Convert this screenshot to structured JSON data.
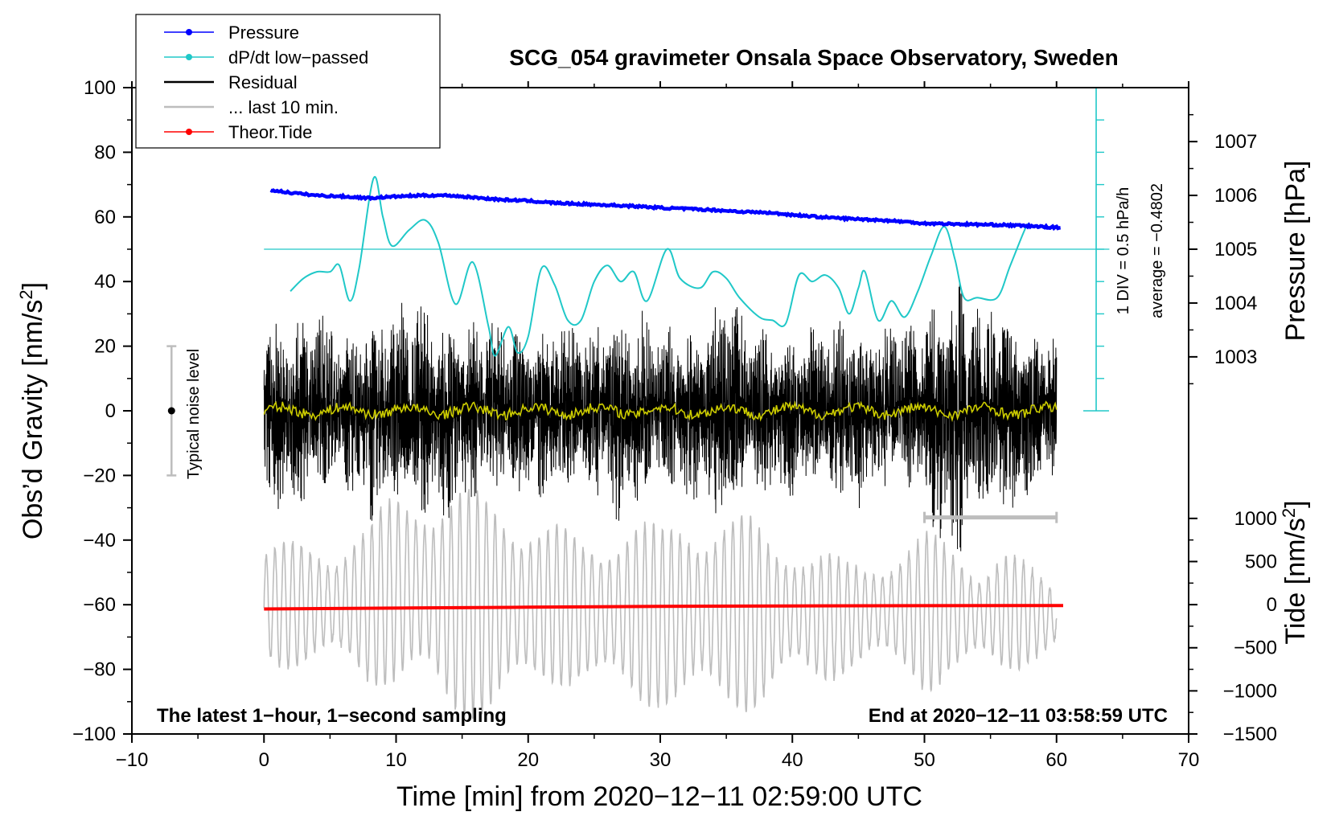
{
  "chart_data": {
    "type": "line",
    "title": "SCG_054 gravimeter Onsala Space Observatory, Sweden",
    "xlabel": "Time [min] from 2020−12−11 02:59:00 UTC",
    "ylabel_left": "Obs’d Gravity [nm/s",
    "ylabel_left_sup": "2",
    "ylabel_left_end": "]",
    "ylabel_right_pressure": "Pressure [hPa]",
    "ylabel_right_tide": "Tide [nm/s",
    "ylabel_right_tide_sup": "2",
    "ylabel_right_tide_end": "]",
    "xlim": [
      -10,
      70
    ],
    "ylim_left": [
      -100,
      100
    ],
    "x_ticks": [
      -10,
      0,
      10,
      20,
      30,
      40,
      50,
      60,
      70
    ],
    "x_tick_labels": [
      "−10",
      "0",
      "10",
      "20",
      "30",
      "40",
      "50",
      "60",
      "70"
    ],
    "y_ticks": [
      100,
      80,
      60,
      40,
      20,
      0,
      -20,
      -40,
      -60,
      -80,
      -100
    ],
    "y_tick_labels": [
      "100",
      "80",
      "60",
      "40",
      "20",
      "0",
      "−20",
      "−40",
      "−60",
      "−80",
      "−100"
    ],
    "pressure_ticks": [
      1007,
      1006,
      1005,
      1004,
      1003
    ],
    "pressure_tick_labels": [
      "1007",
      "1006",
      "1005",
      "1004",
      "1003"
    ],
    "pressure_axis_map": {
      "p1": 1003,
      "g1": 16.7,
      "p2": 1007,
      "g2": 83.3
    },
    "tide_ticks": [
      1000,
      500,
      0,
      -500,
      -1000,
      -1500
    ],
    "tide_tick_labels": [
      "1000",
      "500",
      "0",
      "−500",
      "−1000",
      "−1500"
    ],
    "tide_axis_map": {
      "t1": -1500,
      "g1": -100,
      "t2": 1000,
      "g2": -33.3
    },
    "legend": [
      {
        "label": "Pressure",
        "color": "#0000ff",
        "marker": true
      },
      {
        "label": "dP/dt low−passed",
        "color": "#20c8c8",
        "marker": true
      },
      {
        "label": "Residual",
        "color": "#000000",
        "marker": false
      },
      {
        "label": "... last 10 min.",
        "color": "#bdbdbd",
        "marker": false
      },
      {
        "label": "Theor.Tide",
        "color": "#ff0000",
        "marker": true
      }
    ],
    "annotations": {
      "noise_label": "Typical noise level",
      "dpdt_scale": "1 DIV = 0.5 hPa/h",
      "dpdt_average": "average = −0.4802",
      "bottom_left": "The latest 1−hour, 1−second sampling",
      "bottom_right": "End at 2020−12−11 03:58:59 UTC"
    },
    "noise_level": {
      "x": -7,
      "center": 0,
      "half_range": 20
    },
    "ten_min_bar": {
      "x_start": 50,
      "x_end": 60,
      "y": -33
    },
    "dpdt_zero_line_g": 50,
    "dpdt_scale_axis": {
      "x": 63,
      "g_min": 0,
      "g_max": 100,
      "div_g": 10
    },
    "series": {
      "pressure": {
        "color": "#0000ff",
        "x": [
          0.5,
          2,
          4,
          6,
          8,
          10,
          12,
          14,
          16,
          18,
          20,
          22,
          24,
          26,
          28,
          30,
          32,
          34,
          36,
          38,
          40,
          42,
          44,
          46,
          48,
          50,
          52,
          54,
          56,
          58,
          60.3
        ],
        "y": [
          1006.1,
          1006.05,
          1006.0,
          1005.98,
          1005.95,
          1005.98,
          1006.0,
          1006.0,
          1005.96,
          1005.92,
          1005.9,
          1005.86,
          1005.84,
          1005.82,
          1005.8,
          1005.77,
          1005.75,
          1005.73,
          1005.7,
          1005.68,
          1005.64,
          1005.6,
          1005.57,
          1005.55,
          1005.52,
          1005.48,
          1005.47,
          1005.46,
          1005.45,
          1005.43,
          1005.4
        ]
      },
      "dpdt": {
        "color": "#20c8c8",
        "x": [
          2,
          3,
          4,
          5,
          5.7,
          6.5,
          7.2,
          8.3,
          9,
          9.7,
          11,
          12.2,
          13.2,
          14.5,
          15.8,
          17,
          17.5,
          18.5,
          19.2,
          20,
          21,
          22,
          23,
          24,
          25,
          26,
          27,
          28,
          29,
          30.5,
          31.5,
          33,
          34,
          35,
          36,
          37.5,
          38.5,
          39.5,
          40.5,
          41.5,
          42.5,
          43.5,
          44.3,
          45,
          45.5,
          46.5,
          47.5,
          48.5,
          49.5,
          50.5,
          51.5,
          52.3,
          53,
          54,
          55.5,
          56.5,
          57.7,
          58
        ],
        "y": [
          37,
          41,
          43,
          43,
          45,
          34,
          44,
          72,
          60,
          51,
          56,
          59,
          52,
          33,
          46,
          26,
          17,
          26,
          18,
          23,
          44,
          39,
          28,
          28,
          40,
          45,
          40,
          43,
          34,
          50,
          41,
          38,
          43,
          41,
          35,
          29,
          28,
          27,
          42,
          40,
          42,
          38,
          30,
          38,
          43,
          28,
          34,
          29,
          37,
          48,
          57,
          47,
          35,
          35,
          35,
          45,
          57,
          57
        ]
      },
      "tide": {
        "color": "#ff0000",
        "x": [
          0,
          10,
          20,
          30,
          40,
          50,
          60.5
        ],
        "y": [
          -50,
          -40,
          -30,
          -20,
          -15,
          -12,
          -10
        ]
      },
      "residual_envelope": {
        "color": "#000000",
        "x": [
          0,
          2,
          4,
          6,
          7,
          8,
          10,
          12,
          14,
          16,
          18,
          20,
          22,
          24,
          26,
          28,
          30,
          32,
          34,
          35,
          36,
          38,
          40,
          42,
          44,
          46,
          48,
          50,
          51,
          52,
          53,
          54,
          56,
          58,
          60
        ],
        "amplitude": [
          28,
          26,
          28,
          22,
          26,
          30,
          30,
          30,
          28,
          26,
          24,
          24,
          26,
          22,
          28,
          30,
          24,
          24,
          28,
          36,
          26,
          24,
          24,
          22,
          28,
          26,
          24,
          28,
          35,
          40,
          38,
          34,
          30,
          24,
          20
        ]
      },
      "residual_smoothed": {
        "color": "#cccc00",
        "mean": 1.2,
        "noise": 1.6
      },
      "last10_envelope": {
        "color": "#bdbdbd",
        "x": [
          0,
          4,
          8,
          10,
          12,
          14,
          16,
          18,
          20,
          22,
          24,
          26,
          28,
          30,
          32,
          34,
          36,
          38,
          40,
          42,
          44,
          46,
          48,
          50,
          52,
          54,
          56,
          58,
          60
        ],
        "center": [
          -60,
          -60,
          -60,
          -55,
          -55,
          -60,
          -60,
          -60,
          -60,
          -60,
          -62,
          -62,
          -62,
          -64,
          -62,
          -62,
          -62,
          -64,
          -62,
          -64,
          -64,
          -62,
          -62,
          -62,
          -62,
          -63,
          -62,
          -63,
          -64
        ],
        "amplitude": [
          18,
          20,
          24,
          30,
          36,
          36,
          34,
          36,
          30,
          24,
          22,
          28,
          30,
          26,
          32,
          32,
          30,
          26,
          24,
          22,
          16,
          16,
          22,
          24,
          20,
          18,
          20,
          14,
          10
        ]
      }
    }
  }
}
